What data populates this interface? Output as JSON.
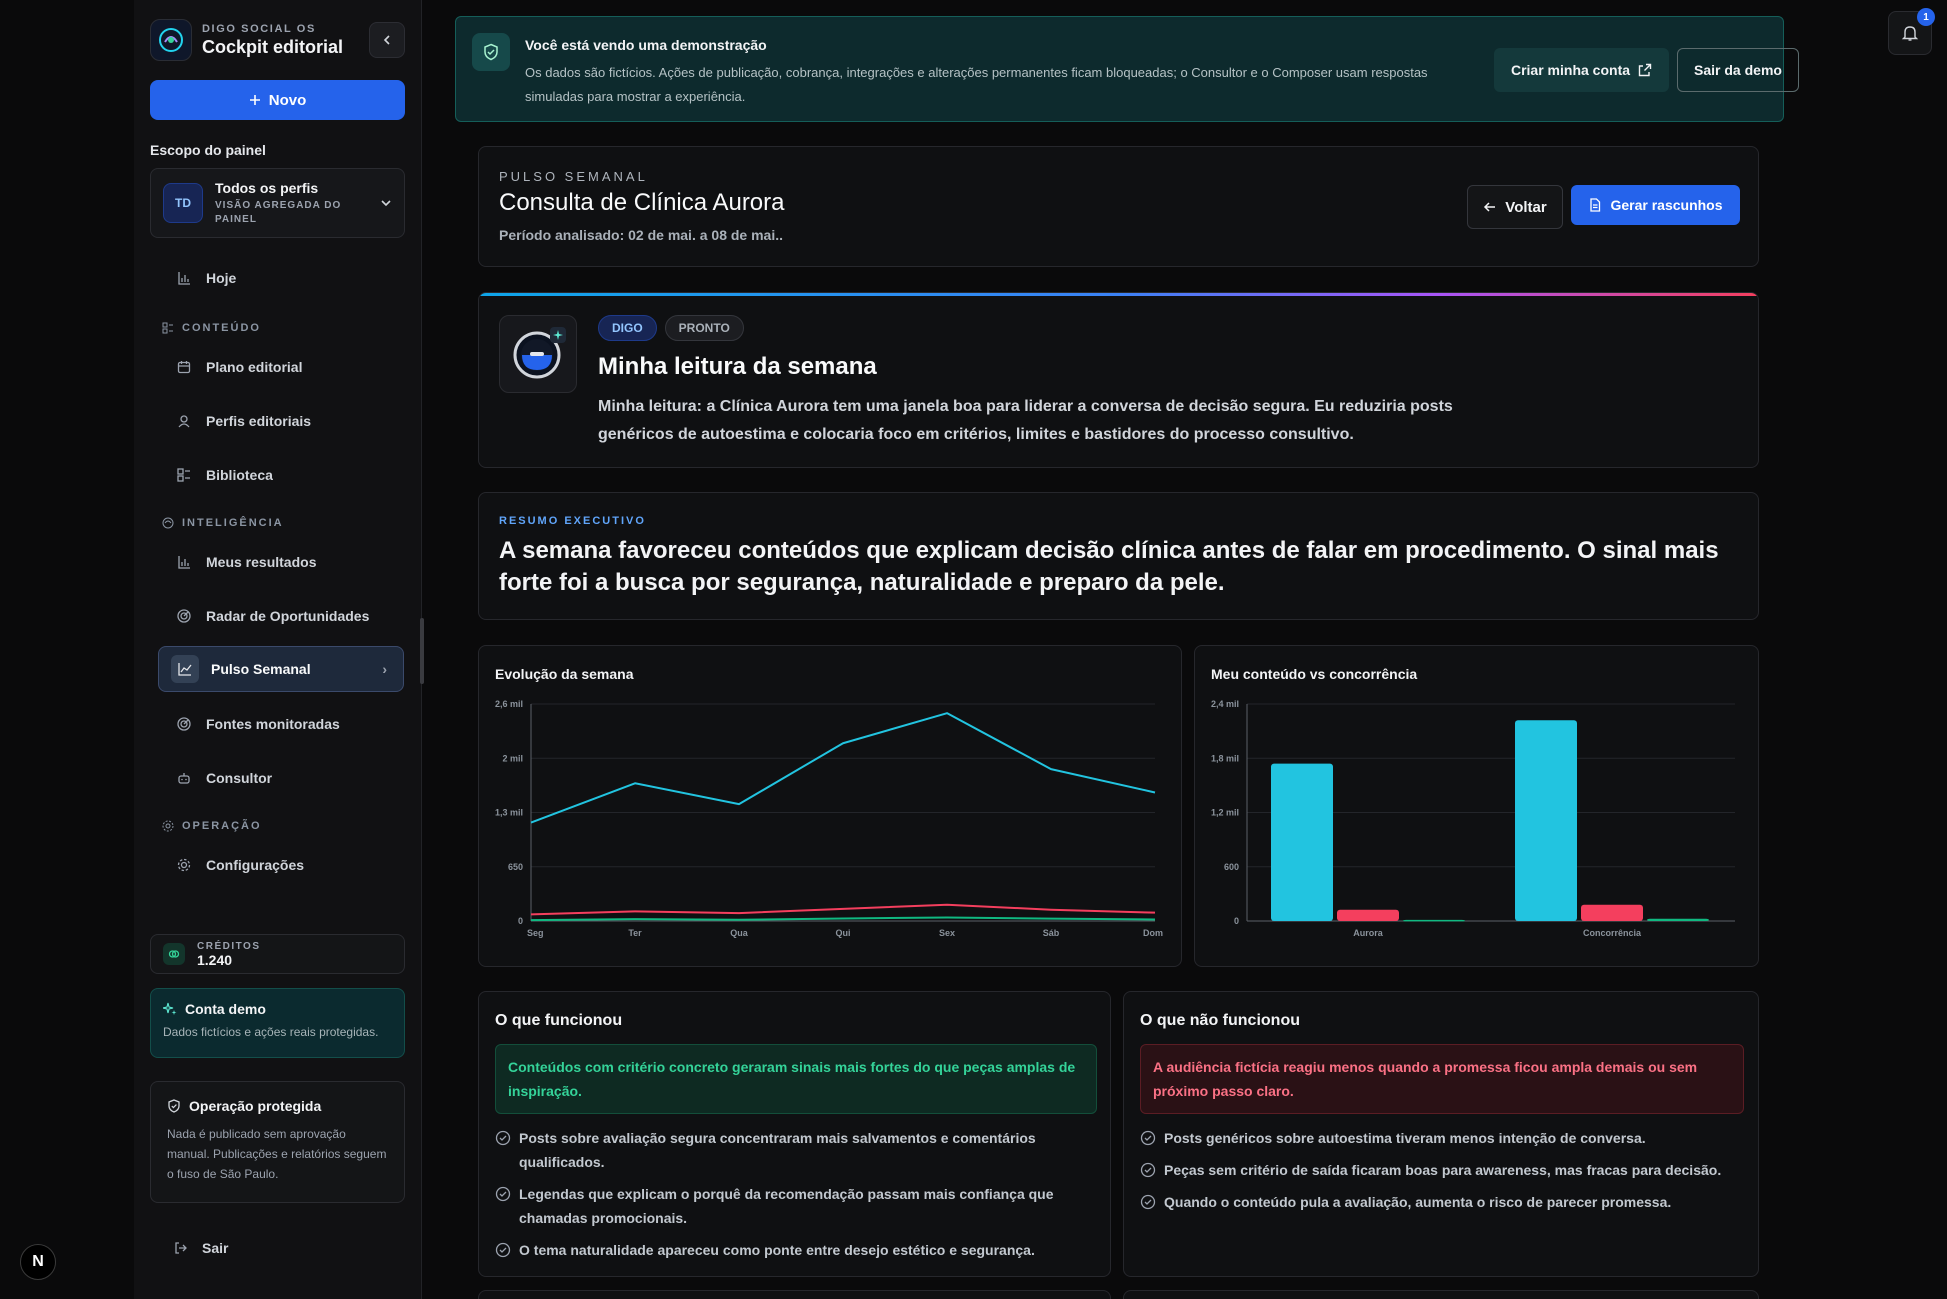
{
  "sidebar": {
    "brand_sub": "DIGO SOCIAL OS",
    "brand_title": "Cockpit editorial",
    "new_label": "Novo",
    "scope_label": "Escopo do painel",
    "scope": {
      "initials": "TD",
      "title": "Todos os perfis",
      "subtitle": "VISÃO AGREGADA DO PAINEL"
    },
    "today": "Hoje",
    "section_content": "CONTEÚDO",
    "content_items": [
      "Plano editorial",
      "Perfis editoriais",
      "Biblioteca"
    ],
    "section_intel": "INTELIGÊNCIA",
    "intel_items": [
      "Meus resultados",
      "Radar de Oportunidades",
      "Pulso Semanal",
      "Fontes monitoradas",
      "Consultor"
    ],
    "section_ops": "OPERAÇÃO",
    "ops_items": [
      "Configurações"
    ],
    "credits_label": "CRÉDITOS",
    "credits_value": "1.240",
    "demo_title": "Conta demo",
    "demo_text": "Dados fictícios e ações reais protegidas.",
    "protected_title": "Operação protegida",
    "protected_text": "Nada é publicado sem aprovação manual. Publicações e relatórios seguem o fuso de São Paulo.",
    "logout": "Sair",
    "n_badge": "N"
  },
  "banner": {
    "title": "Você está vendo uma demonstração",
    "text": "Os dados são fictícios. Ações de publicação, cobrança, integrações e alterações permanentes ficam bloqueadas; o Consultor e o Composer usam respostas simuladas para mostrar a experiência.",
    "create_label": "Criar minha conta",
    "exit_label": "Sair da demo"
  },
  "notifications": {
    "count": "1"
  },
  "header": {
    "eyebrow": "PULSO SEMANAL",
    "title": "Consulta de Clínica Aurora",
    "period": "Período analisado: 02 de mai. a 08 de mai..",
    "back_label": "Voltar",
    "generate_label": "Gerar rascunhos"
  },
  "reading": {
    "tag_digo": "DIGO",
    "tag_status": "PRONTO",
    "title": "Minha leitura da semana",
    "text": "Minha leitura: a Clínica Aurora tem uma janela boa para liderar a conversa de decisão segura. Eu reduziria posts genéricos de autoestima e colocaria foco em critérios, limites e bastidores do processo consultivo."
  },
  "summary": {
    "eyebrow": "RESUMO EXECUTIVO",
    "text": "A semana favoreceu conteúdos que explicam decisão clínica antes de falar em procedimento. O sinal mais forte foi a busca por segurança, naturalidade e preparo da pele."
  },
  "chart_data": [
    {
      "type": "line",
      "title": "Evolução da semana",
      "categories": [
        "Seg",
        "Ter",
        "Qua",
        "Qui",
        "Sex",
        "Sáb",
        "Dom"
      ],
      "y_ticks": [
        "0",
        "650",
        "1,3 mil",
        "2 mil",
        "2,6 mil"
      ],
      "ylim": [
        0,
        2600
      ],
      "colors": [
        "#22c4e0",
        "#f43f5e",
        "#10b981"
      ],
      "series": [
        {
          "values": [
            1180,
            1650,
            1400,
            2130,
            2490,
            1820,
            1540
          ]
        },
        {
          "values": [
            80,
            115,
            95,
            145,
            195,
            135,
            100
          ]
        },
        {
          "values": [
            10,
            22,
            15,
            30,
            42,
            28,
            18
          ]
        }
      ]
    },
    {
      "type": "bar",
      "title": "Meu conteúdo vs concorrência",
      "categories": [
        "Aurora",
        "Concorrência"
      ],
      "y_ticks": [
        "0",
        "600",
        "1,2 mil",
        "1,8 mil",
        "2,4 mil"
      ],
      "ylim": [
        0,
        2400
      ],
      "colors": [
        "#22c4e0",
        "#f43f5e",
        "#10b981"
      ],
      "series": [
        {
          "values": [
            1740,
            2220
          ]
        },
        {
          "values": [
            125,
            180
          ]
        },
        {
          "values": [
            12,
            25
          ]
        }
      ]
    }
  ],
  "works": {
    "title": "O que funcionou",
    "callout": "Conteúdos com critério concreto geraram sinais mais fortes do que peças amplas de inspiração.",
    "items": [
      "Posts sobre avaliação segura concentraram mais salvamentos e comentários qualificados.",
      "Legendas que explicam o porquê da recomendação passam mais confiança que chamadas promocionais.",
      "O tema naturalidade apareceu como ponte entre desejo estético e segurança."
    ]
  },
  "notworks": {
    "title": "O que não funcionou",
    "callout": "A audiência fictícia reagiu menos quando a promessa ficou ampla demais ou sem próximo passo claro.",
    "items": [
      "Posts genéricos sobre autoestima tiveram menos intenção de conversa.",
      "Peças sem critério de saída ficaram boas para awareness, mas fracas para decisão.",
      "Quando o conteúdo pula a avaliação, aumenta o risco de parecer promessa."
    ]
  }
}
